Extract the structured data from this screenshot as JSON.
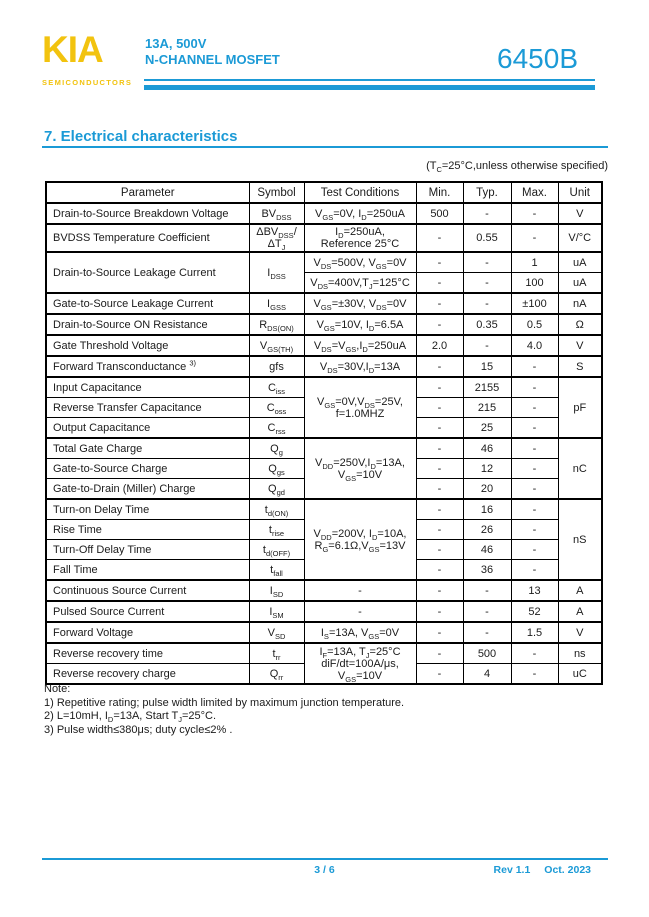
{
  "colors": {
    "accent": "#1b9ad6",
    "brand": "#f2c30f"
  },
  "header": {
    "brand": "KIA",
    "brand_sub": "SEMICONDUCTORS",
    "spec_line1": "13A, 500V",
    "spec_line2": "N-CHANNEL MOSFET",
    "part_number": "6450B"
  },
  "section": {
    "title": "7. Electrical characteristics",
    "condition": "(T~C~=25°C,unless otherwise specified)"
  },
  "table": {
    "headers": [
      "Parameter",
      "Symbol",
      "Test Conditions",
      "Min.",
      "Typ.",
      "Max.",
      "Unit"
    ],
    "rows": [
      {
        "gs": true,
        "cells": [
          {
            "t": "Drain-to-Source Breakdown Voltage",
            "left": true
          },
          {
            "t": "BV~DSS~"
          },
          {
            "t": "V~GS~=0V, I~D~=250uA"
          },
          {
            "t": "500"
          },
          {
            "t": "-"
          },
          {
            "t": "-"
          },
          {
            "t": "V"
          }
        ]
      },
      {
        "gs": true,
        "cells": [
          {
            "t": "BVDSS Temperature Coefficient",
            "left": true
          },
          {
            "t": "ΔBV~DSS~/\nΔT~J~"
          },
          {
            "t": "I~D~=250uA,\nReference 25°C"
          },
          {
            "t": "-"
          },
          {
            "t": "0.55"
          },
          {
            "t": "-"
          },
          {
            "t": "V/°C"
          }
        ]
      },
      {
        "gs": true,
        "cells": [
          {
            "t": "Drain-to-Source Leakage Current",
            "left": true,
            "rs": 2
          },
          {
            "t": "I~DSS~",
            "rs": 2
          },
          {
            "t": "V~DS~=500V, V~GS~=0V"
          },
          {
            "t": "-"
          },
          {
            "t": "-"
          },
          {
            "t": "1"
          },
          {
            "t": "uA"
          }
        ]
      },
      {
        "gs": false,
        "cells": [
          {
            "t": "V~DS~=400V,T~J~=125°C"
          },
          {
            "t": "-"
          },
          {
            "t": "-"
          },
          {
            "t": "100"
          },
          {
            "t": "uA"
          }
        ]
      },
      {
        "gs": true,
        "cells": [
          {
            "t": "Gate-to-Source Leakage Current",
            "left": true
          },
          {
            "t": "I~GSS~"
          },
          {
            "t": "V~GS~=±30V, V~DS~=0V"
          },
          {
            "t": "-"
          },
          {
            "t": "-"
          },
          {
            "t": "±100"
          },
          {
            "t": "nA"
          }
        ]
      },
      {
        "gs": true,
        "cells": [
          {
            "t": "Drain-to-Source ON Resistance",
            "left": true
          },
          {
            "t": "R~DS(ON)~"
          },
          {
            "t": "V~GS~=10V, I~D~=6.5A"
          },
          {
            "t": "-"
          },
          {
            "t": "0.35"
          },
          {
            "t": "0.5"
          },
          {
            "t": "Ω"
          }
        ]
      },
      {
        "gs": true,
        "cells": [
          {
            "t": "Gate Threshold Voltage",
            "left": true
          },
          {
            "t": "V~GS(TH)~"
          },
          {
            "t": "V~DS~=V~GS~,I~D~=250uA"
          },
          {
            "t": "2.0"
          },
          {
            "t": "-"
          },
          {
            "t": "4.0"
          },
          {
            "t": "V"
          }
        ]
      },
      {
        "gs": true,
        "cells": [
          {
            "t": "Forward Transconductance ^3)^",
            "left": true
          },
          {
            "t": "gfs"
          },
          {
            "t": "V~DS~=30V,I~D~=13A"
          },
          {
            "t": "-"
          },
          {
            "t": "15"
          },
          {
            "t": "-"
          },
          {
            "t": "S"
          }
        ]
      },
      {
        "gs": true,
        "cells": [
          {
            "t": "Input Capacitance",
            "left": true
          },
          {
            "t": "C~iss~"
          },
          {
            "t": "V~GS~=0V,V~DS~=25V,\nf=1.0MHZ",
            "rs": 3
          },
          {
            "t": "-"
          },
          {
            "t": "2155"
          },
          {
            "t": "-"
          },
          {
            "t": "pF",
            "rs": 3
          }
        ]
      },
      {
        "gs": false,
        "cells": [
          {
            "t": "Reverse Transfer Capacitance",
            "left": true
          },
          {
            "t": "C~oss~"
          },
          {
            "t": "-"
          },
          {
            "t": "215"
          },
          {
            "t": "-"
          }
        ]
      },
      {
        "gs": false,
        "cells": [
          {
            "t": "Output Capacitance",
            "left": true
          },
          {
            "t": "C~rss~"
          },
          {
            "t": "-"
          },
          {
            "t": "25"
          },
          {
            "t": "-"
          }
        ]
      },
      {
        "gs": true,
        "cells": [
          {
            "t": "Total Gate Charge",
            "left": true
          },
          {
            "t": "Q~g~"
          },
          {
            "t": "V~DD~=250V,I~D~=13A,\nV~GS~=10V",
            "rs": 3
          },
          {
            "t": "-"
          },
          {
            "t": "46"
          },
          {
            "t": "-"
          },
          {
            "t": "nC",
            "rs": 3
          }
        ]
      },
      {
        "gs": false,
        "cells": [
          {
            "t": "Gate-to-Source Charge",
            "left": true
          },
          {
            "t": "Q~gs~"
          },
          {
            "t": "-"
          },
          {
            "t": "12"
          },
          {
            "t": "-"
          }
        ]
      },
      {
        "gs": false,
        "cells": [
          {
            "t": "Gate-to-Drain (Miller) Charge",
            "left": true
          },
          {
            "t": "Q~gd~"
          },
          {
            "t": "-"
          },
          {
            "t": "20"
          },
          {
            "t": "-"
          }
        ]
      },
      {
        "gs": true,
        "cells": [
          {
            "t": "Turn-on Delay Time",
            "left": true
          },
          {
            "t": "t~d(ON)~"
          },
          {
            "t": "V~DD~=200V, I~D~=10A,\nR~G~=6.1Ω,V~GS~=13V",
            "rs": 4
          },
          {
            "t": "-"
          },
          {
            "t": "16"
          },
          {
            "t": "-"
          },
          {
            "t": "nS",
            "rs": 4
          }
        ]
      },
      {
        "gs": false,
        "cells": [
          {
            "t": "Rise Time",
            "left": true
          },
          {
            "t": "t~rise~"
          },
          {
            "t": "-"
          },
          {
            "t": "26"
          },
          {
            "t": "-"
          }
        ]
      },
      {
        "gs": false,
        "cells": [
          {
            "t": "Turn-Off Delay Time",
            "left": true
          },
          {
            "t": "t~d(OFF)~"
          },
          {
            "t": "-"
          },
          {
            "t": "46"
          },
          {
            "t": "-"
          }
        ]
      },
      {
        "gs": false,
        "cells": [
          {
            "t": "Fall Time",
            "left": true
          },
          {
            "t": "t~fall~"
          },
          {
            "t": "-"
          },
          {
            "t": "36"
          },
          {
            "t": "-"
          }
        ]
      },
      {
        "gs": true,
        "cells": [
          {
            "t": "Continuous Source Current",
            "left": true
          },
          {
            "t": "I~SD~"
          },
          {
            "t": "-"
          },
          {
            "t": "-"
          },
          {
            "t": "-"
          },
          {
            "t": "13"
          },
          {
            "t": "A"
          }
        ]
      },
      {
        "gs": true,
        "cells": [
          {
            "t": "Pulsed Source Current",
            "left": true
          },
          {
            "t": "I~SM~"
          },
          {
            "t": "-"
          },
          {
            "t": "-"
          },
          {
            "t": "-"
          },
          {
            "t": "52"
          },
          {
            "t": "A"
          }
        ]
      },
      {
        "gs": true,
        "cells": [
          {
            "t": "Forward Voltage",
            "left": true
          },
          {
            "t": "V~SD~"
          },
          {
            "t": "I~S~=13A, V~GS~=0V"
          },
          {
            "t": "-"
          },
          {
            "t": "-"
          },
          {
            "t": "1.5"
          },
          {
            "t": "V"
          }
        ]
      },
      {
        "gs": true,
        "cells": [
          {
            "t": "Reverse recovery time",
            "left": true
          },
          {
            "t": "t~rr~"
          },
          {
            "t": "I~F~=13A, T~J~=25°C\ndiF/dt=100A/μs,\nV~GS~=10V",
            "rs": 2
          },
          {
            "t": "-"
          },
          {
            "t": "500"
          },
          {
            "t": "-"
          },
          {
            "t": "ns"
          }
        ]
      },
      {
        "gs": false,
        "cells": [
          {
            "t": "Reverse recovery charge",
            "left": true
          },
          {
            "t": "Q~rr~"
          },
          {
            "t": "-"
          },
          {
            "t": "4"
          },
          {
            "t": "-"
          },
          {
            "t": "uC"
          }
        ]
      }
    ]
  },
  "notes": {
    "lines": [
      "Note:",
      "1) Repetitive rating; pulse width limited by maximum junction temperature.",
      "2) L=10mH, I~D~=13A, Start T~J~=25°C.",
      "3) Pulse width≤380μs; duty cycle≤2% ."
    ]
  },
  "footer": {
    "page": "3 / 6",
    "rev": "Rev 1.1",
    "date": "Oct. 2023"
  }
}
